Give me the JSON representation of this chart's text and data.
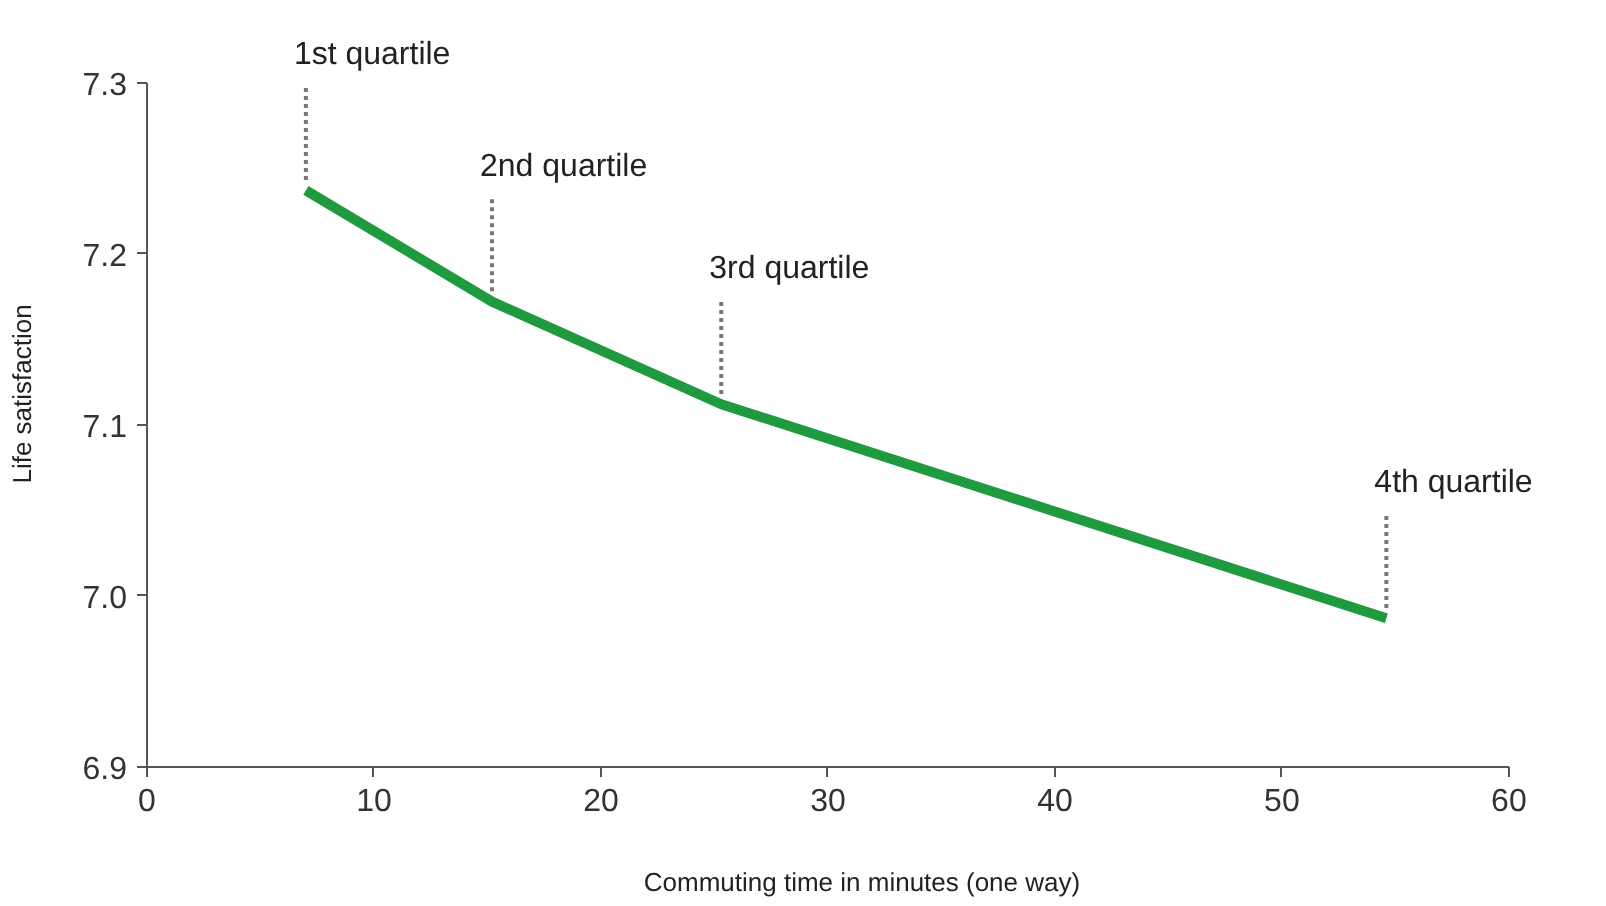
{
  "chart_data": {
    "type": "line",
    "xlabel": "Commuting time in minutes (one way)",
    "ylabel": "Life satisfaction",
    "x": [
      7,
      15.2,
      25.3,
      54.6
    ],
    "series": [
      {
        "color": "#1f9a3e",
        "values": [
          7.237,
          7.172,
          7.112,
          6.987
        ]
      }
    ],
    "xlim": [
      0,
      60
    ],
    "xticks": [
      0,
      10,
      20,
      30,
      40,
      50,
      60
    ],
    "ylim": [
      6.9,
      7.3
    ],
    "yticks": [
      6.9,
      {
        "value": 7.0,
        "label": "7.0"
      },
      7.1,
      7.2,
      7.3
    ],
    "grid": false,
    "marker": "none",
    "line_style": "solid",
    "annotations": [
      {
        "text": "1st quartile",
        "x": 7,
        "y": 7.237
      },
      {
        "text": "2nd quartile",
        "x": 15.2,
        "y": 7.172
      },
      {
        "text": "3rd quartile",
        "x": 25.3,
        "y": 7.112
      },
      {
        "text": "4th quartile",
        "x": 54.6,
        "y": 6.987
      }
    ]
  }
}
